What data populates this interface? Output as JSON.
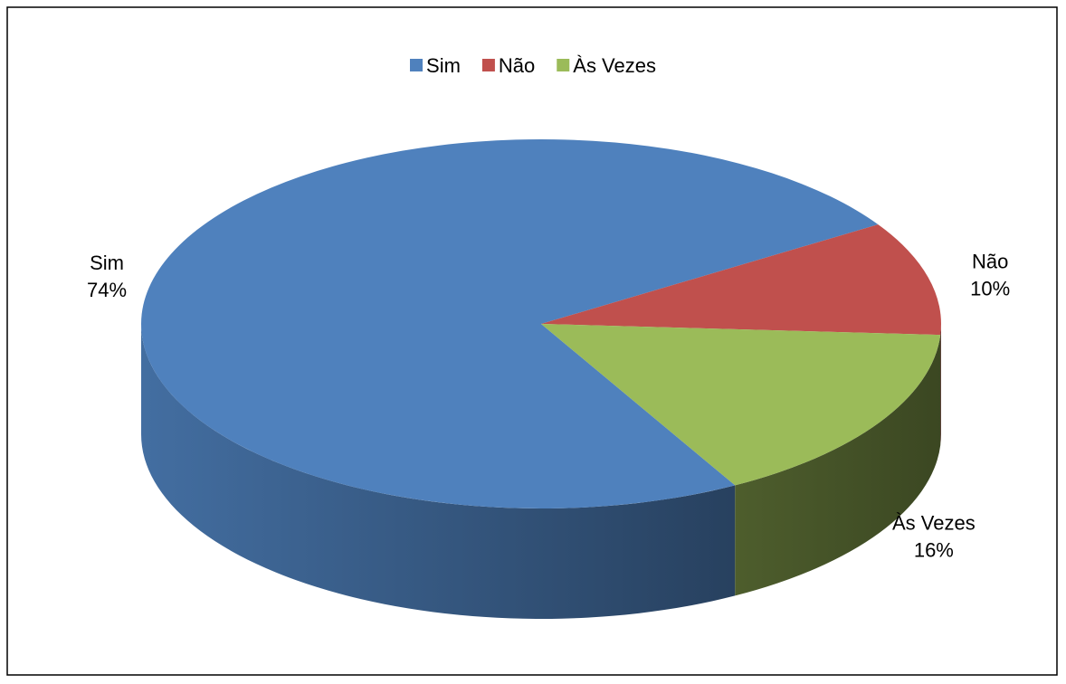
{
  "chart_data": {
    "type": "pie3d",
    "categories": [
      "Sim",
      "Não",
      "Às Vezes"
    ],
    "values": [
      74,
      10,
      16
    ],
    "value_labels": [
      "74%",
      "10%",
      "16%"
    ],
    "colors": [
      "#4f81bd",
      "#c0504d",
      "#9bbb59"
    ],
    "legend": "top"
  }
}
